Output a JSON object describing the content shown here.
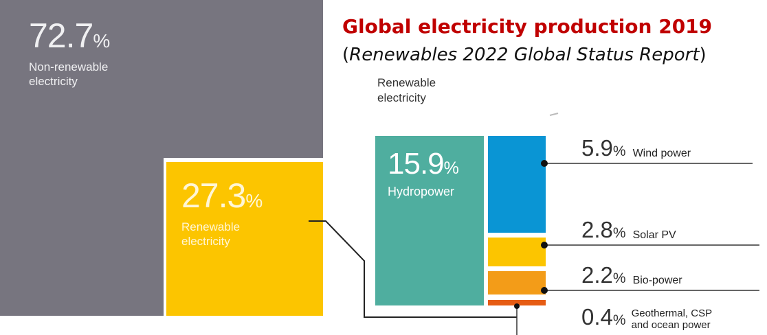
{
  "chart_data": {
    "type": "treemap",
    "title": "Global electricity production 2019",
    "subtitle": "Renewables 2022 Global Status Report",
    "totals": [
      {
        "name": "Non-renewable electricity",
        "value": 72.7,
        "value_text": "72.7",
        "unit": "%",
        "label_lines": [
          "Non-renewable",
          "electricity"
        ],
        "color": "#77757f"
      },
      {
        "name": "Renewable electricity",
        "value": 27.3,
        "value_text": "27.3",
        "unit": "%",
        "label_lines": [
          "Renewable",
          "electricity"
        ],
        "color": "#fcc500"
      }
    ],
    "renewable_breakdown": {
      "heading_lines": [
        "Renewable",
        "electricity"
      ],
      "items": [
        {
          "name": "Hydropower",
          "value": 15.9,
          "value_text": "15.9",
          "unit": "%",
          "color": "#4fae9f"
        },
        {
          "name": "Wind power",
          "value": 5.9,
          "value_text": "5.9",
          "unit": "%",
          "color": "#0a95d4"
        },
        {
          "name": "Solar PV",
          "value": 2.8,
          "value_text": "2.8",
          "unit": "%",
          "color": "#fcc500"
        },
        {
          "name": "Bio-power",
          "value": 2.2,
          "value_text": "2.2",
          "unit": "%",
          "color": "#f39c18"
        },
        {
          "name": "Geothermal, CSP and ocean power",
          "value": 0.4,
          "value_text": "0.4",
          "unit": "%",
          "label_lines": [
            "Geothermal, CSP",
            "and ocean power"
          ],
          "color": "#e65c14"
        }
      ]
    }
  }
}
